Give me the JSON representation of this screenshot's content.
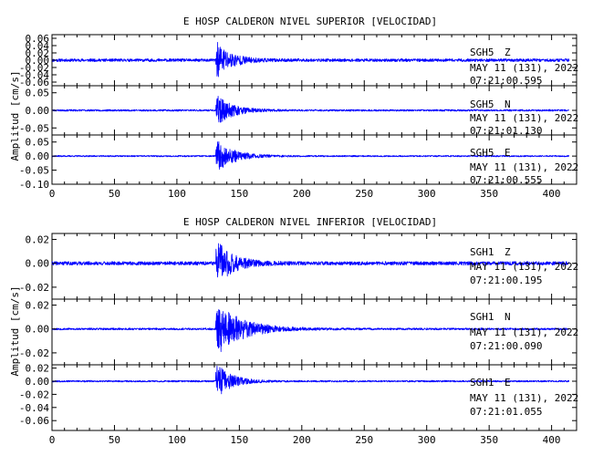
{
  "chart_data": [
    {
      "type": "line",
      "title": "E HOSP CALDERON NIVEL SUPERIOR [VELOCIDAD]",
      "ylabel": "Amplitud [cm/s]",
      "xlabel": "",
      "xlim": [
        0,
        420
      ],
      "xticks": [
        "0",
        "50",
        "100",
        "150",
        "200",
        "250",
        "300",
        "350",
        "400"
      ],
      "grid": false,
      "panels": [
        {
          "name": "SGH5 Z",
          "station": "SGH5",
          "component": "Z",
          "date": "MAY 11 (131), 2022",
          "time": "07:21:00.595",
          "ylim": [
            -0.07,
            0.07
          ],
          "yticks": [
            "0.06",
            "0.04",
            "0.02",
            "0.00",
            "-0.02",
            "-0.04",
            "-0.06"
          ],
          "baseline": 0.0,
          "noise": 0.004,
          "onset": 131,
          "peak": 0.055,
          "decay": 0.09,
          "seed": 11
        },
        {
          "name": "SGH5 N",
          "station": "SGH5",
          "component": "N",
          "date": "MAY 11 (131), 2022",
          "time": "07:21:01.130",
          "ylim": [
            -0.07,
            0.07
          ],
          "yticks": [
            "0.05",
            "0.00",
            "-0.05"
          ],
          "baseline": 0.0,
          "noise": 0.0025,
          "onset": 131,
          "peak": 0.045,
          "decay": 0.08,
          "seed": 23
        },
        {
          "name": "SGH5 E",
          "station": "SGH5",
          "component": "E",
          "date": "MAY 11 (131), 2022",
          "time": "07:21:00.555",
          "ylim": [
            -0.1,
            0.075
          ],
          "yticks": [
            "0.05",
            "0.00",
            "-0.05",
            "-0.10"
          ],
          "baseline": 0.0,
          "noise": 0.0025,
          "onset": 131,
          "peak": 0.06,
          "decay": 0.075,
          "seed": 37
        }
      ]
    },
    {
      "type": "line",
      "title": "E HOSP CALDERON NIVEL INFERIOR [VELOCIDAD]",
      "ylabel": "Amplitud [cm/s]",
      "xlabel": "",
      "xlim": [
        0,
        420
      ],
      "xticks": [
        "0",
        "50",
        "100",
        "150",
        "200",
        "250",
        "300",
        "350",
        "400"
      ],
      "grid": false,
      "panels": [
        {
          "name": "SGH1 Z",
          "station": "SGH1",
          "component": "Z",
          "date": "MAY 11 (131), 2022",
          "time": "07:21:00.195",
          "ylim": [
            -0.03,
            0.025
          ],
          "yticks": [
            "0.02",
            "0.00",
            "-0.02"
          ],
          "baseline": 0.0,
          "noise": 0.0015,
          "onset": 131,
          "peak": 0.02,
          "decay": 0.08,
          "seed": 41
        },
        {
          "name": "SGH1 N",
          "station": "SGH1",
          "component": "N",
          "date": "MAY 11 (131), 2022",
          "time": "07:21:00.090",
          "ylim": [
            -0.03,
            0.025
          ],
          "yticks": [
            "0.02",
            "0.00",
            "-0.02"
          ],
          "baseline": 0.0,
          "noise": 0.0008,
          "onset": 131,
          "peak": 0.023,
          "decay": 0.05,
          "seed": 53
        },
        {
          "name": "SGH1 E",
          "station": "SGH1",
          "component": "E",
          "date": "MAY 11 (131), 2022",
          "time": "07:21:01.055",
          "ylim": [
            -0.075,
            0.025
          ],
          "yticks": [
            "0.02",
            "0.00",
            "-0.02",
            "-0.04",
            "-0.06"
          ],
          "baseline": 0.0,
          "noise": 0.0012,
          "onset": 131,
          "peak": 0.03,
          "decay": 0.09,
          "seed": 67
        }
      ]
    }
  ],
  "colors": {
    "trace": "#0000ff",
    "axes": "#000000"
  }
}
